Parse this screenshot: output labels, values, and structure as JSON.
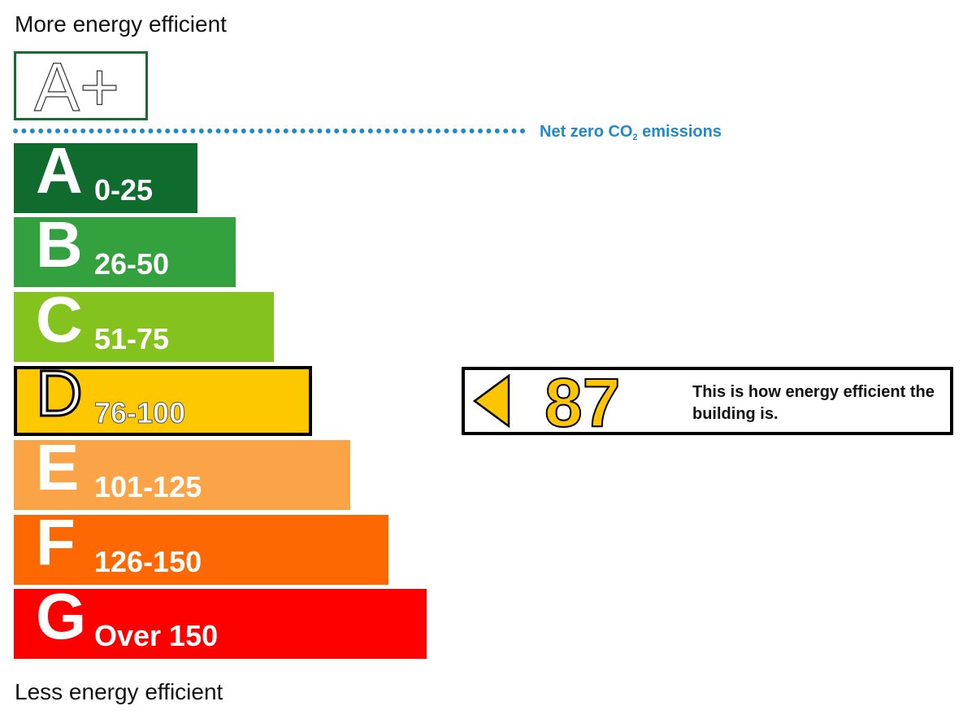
{
  "captions": {
    "top": "More energy efficient",
    "bottom": "Less energy efficient"
  },
  "net_zero": {
    "label_prefix": "Net zero CO",
    "label_sub": "2",
    "label_suffix": " emissions",
    "color": "#1e8bc8"
  },
  "aplus": {
    "label": "A+",
    "border_color": "#1a6b33"
  },
  "chart_data": {
    "type": "bar",
    "bands": [
      {
        "letter": "A",
        "range": "0-25",
        "color": "#0f6b2e",
        "relative_width": 1
      },
      {
        "letter": "B",
        "range": "26-50",
        "color": "#33a13d",
        "relative_width": 2
      },
      {
        "letter": "C",
        "range": "51-75",
        "color": "#84c21d",
        "relative_width": 3
      },
      {
        "letter": "D",
        "range": "76-100",
        "color": "#fdc800",
        "relative_width": 4
      },
      {
        "letter": "E",
        "range": "101-125",
        "color": "#fba347",
        "relative_width": 5
      },
      {
        "letter": "F",
        "range": "126-150",
        "color": "#fd6802",
        "relative_width": 6
      },
      {
        "letter": "G",
        "range": "Over 150",
        "color": "#fc0000",
        "relative_width": 7
      }
    ],
    "current_rating": {
      "value": "87",
      "band": "D",
      "color": "#fcc500"
    }
  },
  "rating_text": "This is how energy efficient the building is."
}
